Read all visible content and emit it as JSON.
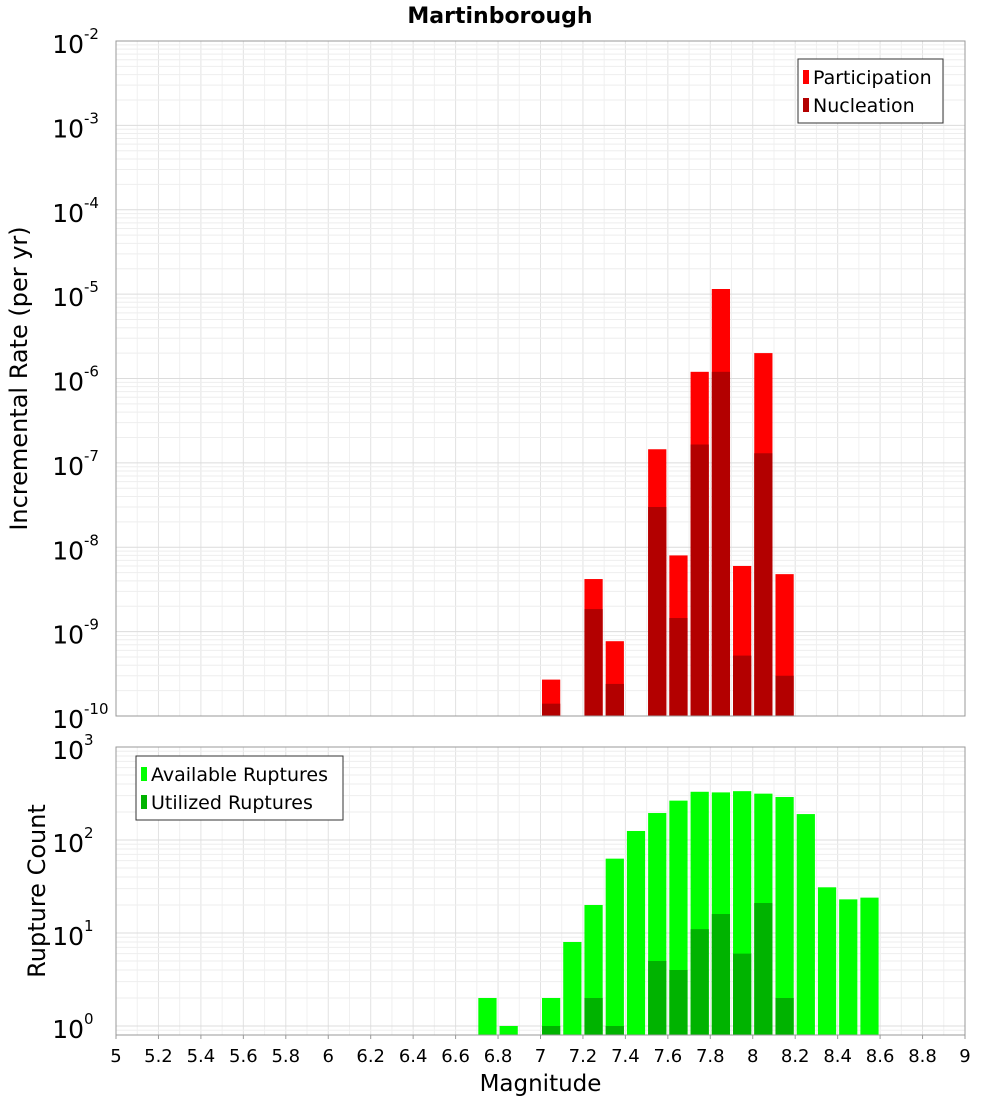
{
  "title": "Martinborough",
  "chart_data": [
    {
      "type": "bar",
      "title": "Martinborough",
      "xlabel": "",
      "ylabel": "Incremental Rate (per yr)",
      "yscale": "log",
      "ylim": [
        1e-10,
        0.01
      ],
      "xlim": [
        5,
        9
      ],
      "grid": true,
      "legend_position": "top-right",
      "y_ticks": [
        {
          "base": "10",
          "exp": "-10"
        },
        {
          "base": "10",
          "exp": "-9"
        },
        {
          "base": "10",
          "exp": "-8"
        },
        {
          "base": "10",
          "exp": "-7"
        },
        {
          "base": "10",
          "exp": "-6"
        },
        {
          "base": "10",
          "exp": "-5"
        },
        {
          "base": "10",
          "exp": "-4"
        },
        {
          "base": "10",
          "exp": "-3"
        },
        {
          "base": "10",
          "exp": "-2"
        }
      ],
      "series": [
        {
          "name": "Participation",
          "color": "#ff0000",
          "x": [
            7.05,
            7.25,
            7.35,
            7.55,
            7.65,
            7.75,
            7.85,
            7.95,
            8.05,
            8.15
          ],
          "values": [
            2.7e-10,
            4.2e-09,
            7.7e-10,
            1.45e-07,
            8e-09,
            1.2e-06,
            1.15e-05,
            6e-09,
            2e-06,
            4.8e-09
          ]
        },
        {
          "name": "Nucleation",
          "color": "#b30000",
          "x": [
            7.05,
            7.25,
            7.35,
            7.55,
            7.65,
            7.75,
            7.85,
            7.95,
            8.05,
            8.15
          ],
          "values": [
            1.4e-10,
            1.85e-09,
            2.4e-10,
            3e-08,
            1.45e-09,
            1.65e-07,
            1.2e-06,
            5.2e-10,
            1.3e-07,
            3e-10
          ]
        }
      ]
    },
    {
      "type": "bar",
      "title": "",
      "xlabel": "Magnitude",
      "ylabel": "Rupture Count",
      "yscale": "log",
      "ylim": [
        0.8,
        1000
      ],
      "xlim": [
        5,
        9
      ],
      "grid": true,
      "legend_position": "top-left",
      "x_ticks": [
        "5",
        "5.2",
        "5.4",
        "5.6",
        "5.8",
        "6",
        "6.2",
        "6.4",
        "6.6",
        "6.8",
        "7",
        "7.2",
        "7.4",
        "7.6",
        "7.8",
        "8",
        "8.2",
        "8.4",
        "8.6",
        "8.8",
        "9"
      ],
      "y_ticks": [
        {
          "base": "10",
          "exp": "0"
        },
        {
          "base": "10",
          "exp": "1"
        },
        {
          "base": "10",
          "exp": "2"
        },
        {
          "base": "10",
          "exp": "3"
        }
      ],
      "series": [
        {
          "name": "Available Ruptures",
          "color": "#00ff00",
          "x": [
            6.75,
            6.85,
            7.05,
            7.15,
            7.25,
            7.35,
            7.45,
            7.55,
            7.65,
            7.75,
            7.85,
            7.95,
            8.05,
            8.15,
            8.25,
            8.35,
            8.45,
            8.55
          ],
          "values": [
            2,
            1,
            2,
            8,
            20,
            63,
            125,
            195,
            265,
            330,
            325,
            335,
            315,
            290,
            190,
            31,
            23,
            24
          ]
        },
        {
          "name": "Utilized Ruptures",
          "color": "#00b300",
          "x": [
            7.05,
            7.25,
            7.35,
            7.55,
            7.65,
            7.75,
            7.85,
            7.95,
            8.05,
            8.15
          ],
          "values": [
            1,
            2,
            1,
            5,
            4,
            11,
            16,
            6,
            21,
            2
          ]
        }
      ]
    }
  ]
}
